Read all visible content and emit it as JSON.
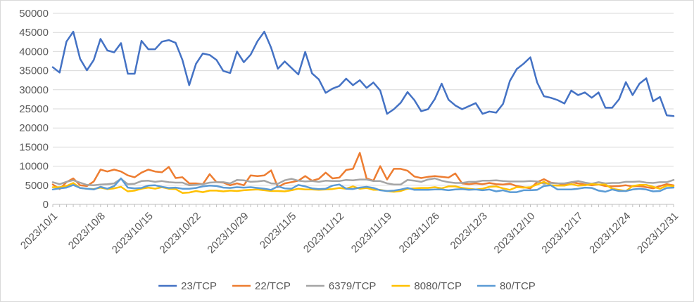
{
  "chart_data": {
    "type": "line",
    "title": "",
    "xlabel": "",
    "ylabel": "",
    "ylim": [
      0,
      50000
    ],
    "yticks": [
      0,
      5000,
      10000,
      15000,
      20000,
      25000,
      30000,
      35000,
      40000,
      45000,
      50000
    ],
    "grid": true,
    "legend_position": "bottom",
    "x_start": "2023/10/1",
    "x_end": "2023/12/31",
    "x_tick_labels": [
      "2023/10/1",
      "2023/10/8",
      "2023/10/15",
      "2023/10/22",
      "2023/10/29",
      "2023/11/5",
      "2023/11/12",
      "2023/11/19",
      "2023/11/26",
      "2023/12/3",
      "2023/12/10",
      "2023/12/17",
      "2023/12/24",
      "2023/12/31"
    ],
    "series": [
      {
        "name": "23/TCP",
        "color": "#4472c4",
        "values": [
          35900,
          34500,
          42600,
          45200,
          38100,
          35100,
          37800,
          43300,
          40300,
          39800,
          42200,
          34200,
          34200,
          42800,
          40600,
          40600,
          42600,
          43000,
          42300,
          37800,
          31200,
          36800,
          39500,
          39100,
          37800,
          34900,
          34400,
          40000,
          37200,
          39200,
          42700,
          45200,
          41000,
          35500,
          37400,
          35700,
          34000,
          39900,
          34300,
          32700,
          29200,
          30300,
          31000,
          32900,
          31200,
          32500,
          30500,
          31900,
          29800,
          23700,
          24900,
          26600,
          29400,
          27300,
          24400,
          24900,
          27600,
          31600,
          27400,
          25900,
          24900,
          25700,
          26500,
          23700,
          24300,
          24000,
          26300,
          32300,
          35400,
          36800,
          38500,
          31900,
          28300,
          27900,
          27300,
          26400,
          29800,
          28600,
          29300,
          27900,
          29300,
          25300,
          25300,
          27500,
          32000,
          28600,
          31600,
          33000,
          27000,
          28100,
          23300,
          23100
        ]
      },
      {
        "name": "22/TCP",
        "color": "#ed7d31",
        "values": [
          5200,
          4000,
          5800,
          6800,
          5000,
          4800,
          6000,
          9100,
          8600,
          9100,
          8600,
          7600,
          7100,
          8300,
          9100,
          8600,
          8400,
          9800,
          6900,
          7100,
          5500,
          5500,
          5300,
          7900,
          5800,
          5700,
          5000,
          5500,
          5000,
          7600,
          7400,
          7600,
          8900,
          4500,
          5500,
          5800,
          6200,
          7400,
          6200,
          6700,
          8300,
          6800,
          7000,
          9000,
          9300,
          13500,
          6800,
          6200,
          10000,
          6500,
          9300,
          9300,
          8800,
          7300,
          6900,
          7200,
          7400,
          7200,
          7000,
          8100,
          5500,
          5300,
          5500,
          5300,
          5600,
          5300,
          5200,
          5400,
          4800,
          4500,
          4200,
          5800,
          6600,
          5700,
          5500,
          5200,
          5800,
          5500,
          5200,
          5000,
          5200,
          4800,
          4700,
          4800,
          5000,
          4700,
          4800,
          4500,
          4200,
          4800,
          5300,
          5000
        ]
      },
      {
        "name": "6379/TCP",
        "color": "#a5a5a5",
        "values": [
          5800,
          5300,
          5900,
          6300,
          5700,
          5100,
          5000,
          5200,
          5300,
          5500,
          6700,
          5300,
          5400,
          6100,
          6200,
          5900,
          6100,
          5800,
          5700,
          5700,
          5000,
          5100,
          5300,
          5700,
          5800,
          5800,
          5500,
          6400,
          6300,
          5900,
          6000,
          6200,
          5500,
          5400,
          6300,
          6700,
          6200,
          6000,
          6100,
          5900,
          6200,
          6100,
          6100,
          6400,
          6300,
          6500,
          6500,
          6100,
          6100,
          5500,
          5200,
          5200,
          6400,
          6200,
          5900,
          6500,
          6800,
          6200,
          5800,
          5600,
          5600,
          5900,
          5900,
          6200,
          6200,
          6300,
          6100,
          6000,
          6000,
          6000,
          6100,
          6000,
          5400,
          5600,
          5500,
          5500,
          5800,
          6100,
          5700,
          5400,
          5800,
          5500,
          5600,
          5600,
          5900,
          5900,
          6000,
          5700,
          5600,
          5800,
          5800,
          6400
        ]
      },
      {
        "name": "8080/TCP",
        "color": "#ffc000",
        "values": [
          4500,
          4500,
          4800,
          5600,
          4300,
          4100,
          4000,
          4400,
          4000,
          4200,
          4600,
          3400,
          3600,
          4100,
          4400,
          4100,
          4500,
          4100,
          4000,
          3000,
          3100,
          3500,
          3200,
          3600,
          3600,
          3400,
          3600,
          3500,
          3700,
          3800,
          3900,
          3700,
          3500,
          3500,
          3400,
          3700,
          4100,
          3900,
          3900,
          3800,
          3900,
          4000,
          4300,
          4100,
          4700,
          4100,
          4300,
          3800,
          3800,
          3500,
          3300,
          3500,
          4100,
          4200,
          4300,
          4300,
          4500,
          4200,
          4700,
          4700,
          4300,
          4100,
          3900,
          4100,
          4600,
          4700,
          4200,
          3800,
          4500,
          4400,
          4500,
          5200,
          5900,
          5000,
          4900,
          4900,
          5300,
          4900,
          5000,
          5300,
          5200,
          5200,
          4100,
          3800,
          3500,
          4800,
          5100,
          5100,
          4600,
          4100,
          4900,
          4800
        ]
      },
      {
        "name": "80/TCP",
        "color": "#5b9bd5",
        "values": [
          3900,
          4200,
          4400,
          5100,
          4300,
          4100,
          3900,
          4600,
          4100,
          4800,
          6800,
          4400,
          4200,
          4300,
          4900,
          5000,
          4600,
          4300,
          4400,
          4100,
          4100,
          4300,
          4700,
          4900,
          4800,
          4400,
          4300,
          4500,
          4400,
          4500,
          4300,
          4100,
          3800,
          4700,
          4200,
          4100,
          5100,
          4700,
          4200,
          4000,
          4100,
          4900,
          5200,
          4100,
          4000,
          4400,
          4600,
          4300,
          3700,
          3500,
          3600,
          3900,
          4300,
          3800,
          3800,
          3800,
          3900,
          3900,
          3700,
          3900,
          4000,
          3800,
          3900,
          3700,
          3900,
          3400,
          3700,
          3200,
          3200,
          3700,
          3700,
          3800,
          4800,
          5000,
          3900,
          3900,
          3900,
          4100,
          4400,
          4300,
          3600,
          3300,
          3900,
          3500,
          3500,
          3900,
          4100,
          3900,
          3400,
          3500,
          4300,
          4400
        ]
      }
    ]
  }
}
